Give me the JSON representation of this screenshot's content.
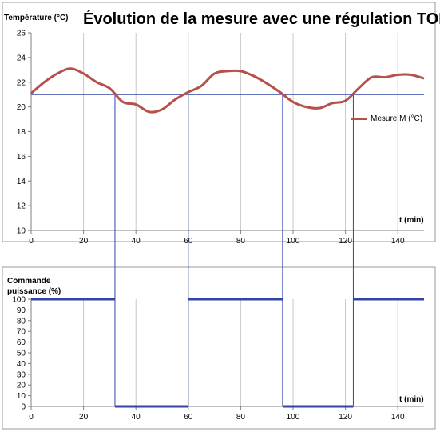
{
  "chart_data": [
    {
      "type": "line",
      "title": "Évolution de la mesure avec une régulation TOR",
      "ylabel": "Température (°C)",
      "xlabel": "t (min)",
      "xlim": [
        0,
        150
      ],
      "ylim": [
        10,
        26
      ],
      "x_ticks": [
        "0",
        "20",
        "40",
        "60",
        "80",
        "100",
        "120",
        "140"
      ],
      "y_ticks": [
        "10",
        "12",
        "14",
        "16",
        "18",
        "20",
        "22",
        "24",
        "26"
      ],
      "grid": "vertical",
      "legend": "right",
      "setpoint": 21,
      "series": [
        {
          "name": "Mesure M (°C)",
          "color": "#b5504a",
          "points": [
            [
              0,
              21.1
            ],
            [
              5,
              22.0
            ],
            [
              10,
              22.7
            ],
            [
              15,
              23.1
            ],
            [
              20,
              22.7
            ],
            [
              25,
              22.0
            ],
            [
              30,
              21.5
            ],
            [
              35,
              20.4
            ],
            [
              40,
              20.2
            ],
            [
              45,
              19.6
            ],
            [
              50,
              19.8
            ],
            [
              55,
              20.6
            ],
            [
              60,
              21.2
            ],
            [
              65,
              21.7
            ],
            [
              70,
              22.7
            ],
            [
              75,
              22.9
            ],
            [
              80,
              22.9
            ],
            [
              85,
              22.5
            ],
            [
              90,
              21.9
            ],
            [
              95,
              21.2
            ],
            [
              100,
              20.4
            ],
            [
              105,
              20.0
            ],
            [
              110,
              19.9
            ],
            [
              115,
              20.3
            ],
            [
              120,
              20.5
            ],
            [
              125,
              21.5
            ],
            [
              130,
              22.4
            ],
            [
              135,
              22.4
            ],
            [
              140,
              22.6
            ],
            [
              145,
              22.6
            ],
            [
              150,
              22.3
            ]
          ]
        }
      ]
    },
    {
      "type": "line",
      "ylabel": "Commande puissance (%)",
      "xlabel": "t (min)",
      "xlim": [
        0,
        150
      ],
      "ylim": [
        0,
        100
      ],
      "x_ticks": [
        "0",
        "20",
        "40",
        "60",
        "80",
        "100",
        "120",
        "140"
      ],
      "y_ticks": [
        "0",
        "10",
        "20",
        "30",
        "40",
        "50",
        "60",
        "70",
        "80",
        "90",
        "100"
      ],
      "grid": "vertical",
      "series": [
        {
          "color": "#3244a8",
          "segments": [
            [
              0,
              32,
              100
            ],
            [
              32,
              60,
              0
            ],
            [
              60,
              96,
              100
            ],
            [
              96,
              123,
              0
            ],
            [
              123,
              150,
              100
            ]
          ]
        }
      ],
      "switch_times": [
        32,
        60,
        96,
        123
      ]
    }
  ]
}
